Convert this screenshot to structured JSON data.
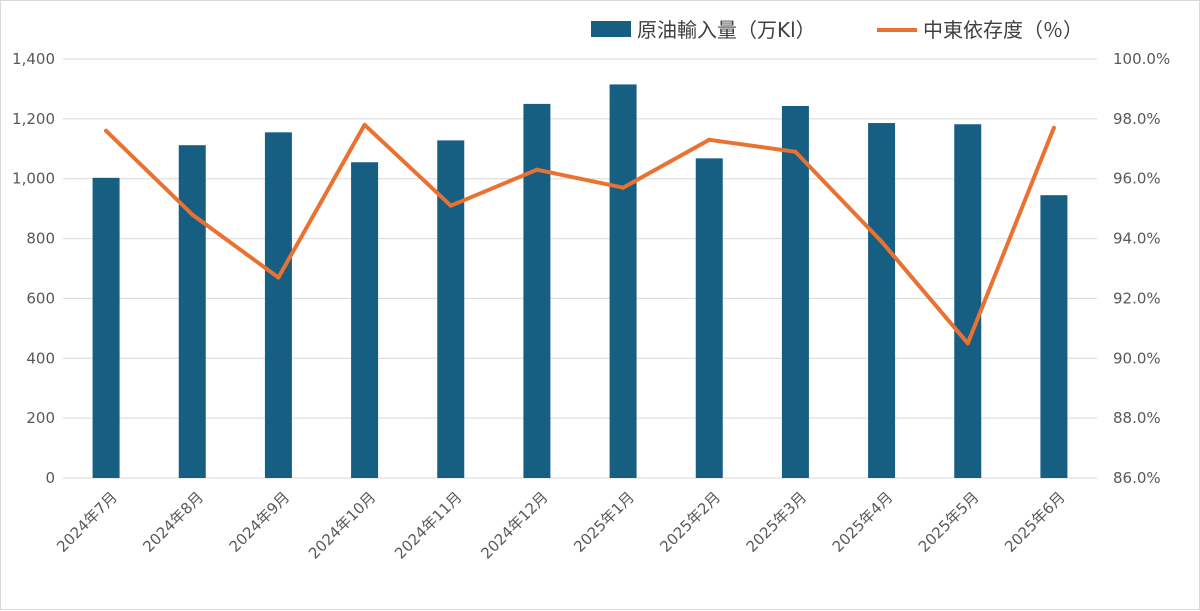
{
  "chart_data": {
    "type": "bar",
    "title": "",
    "categories": [
      "2024年7月",
      "2024年8月",
      "2024年9月",
      "2024年10月",
      "2024年11月",
      "2024年12月",
      "2025年1月",
      "2025年2月",
      "2025年3月",
      "2025年4月",
      "2025年5月",
      "2025年6月"
    ],
    "series": [
      {
        "name": "原油輸入量（万Kl）",
        "type": "bar",
        "axis": "left",
        "color": "#175e83",
        "values": [
          1003,
          1112,
          1155,
          1055,
          1128,
          1250,
          1315,
          1068,
          1243,
          1186,
          1182,
          945
        ]
      },
      {
        "name": "中東依存度（％）",
        "type": "line",
        "axis": "right",
        "color": "#e97132",
        "values": [
          97.6,
          94.8,
          92.7,
          97.8,
          95.1,
          96.3,
          95.7,
          97.3,
          96.9,
          93.9,
          90.5,
          97.7
        ]
      }
    ],
    "left_axis": {
      "ylim": [
        0,
        1400
      ],
      "ticks": [
        0,
        200,
        400,
        600,
        800,
        1000,
        1200,
        1400
      ],
      "tick_labels": [
        "0",
        "200",
        "400",
        "600",
        "800",
        "1,000",
        "1,200",
        "1,400"
      ]
    },
    "right_axis": {
      "ylim": [
        86,
        100
      ],
      "ticks": [
        86,
        88,
        90,
        92,
        94,
        96,
        98,
        100
      ],
      "tick_labels": [
        "86.0%",
        "88.0%",
        "90.0%",
        "92.0%",
        "94.0%",
        "96.0%",
        "98.0%",
        "100.0%"
      ]
    },
    "grid": true,
    "gridline_color": "#d9d9d9",
    "legend_position": "top-right"
  }
}
